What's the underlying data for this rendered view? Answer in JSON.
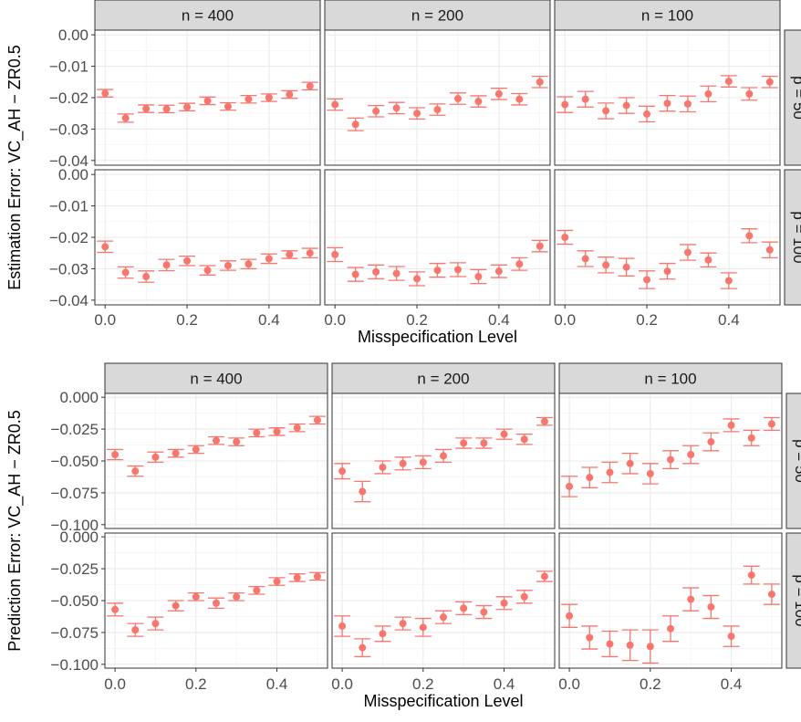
{
  "chart_data": [
    {
      "type": "scatter",
      "facet_columns": [
        "n = 400",
        "n = 200",
        "n = 100"
      ],
      "facet_rows": [
        "p = 50",
        "p = 100"
      ],
      "xlabel": "Misspecification Level",
      "ylabel": "Estimation Error: VC_AH − ZR0.5",
      "x_ticks": [
        "0.0",
        "0.2",
        "0.4"
      ],
      "x_tick_values": [
        0.0,
        0.2,
        0.4
      ],
      "y_ticks": [
        "0.00",
        "−0.01",
        "−0.02",
        "−0.03",
        "−0.04"
      ],
      "y_tick_values": [
        0.0,
        -0.01,
        -0.02,
        -0.03,
        -0.04
      ],
      "xlim": [
        -0.025,
        0.525
      ],
      "ylim": [
        -0.0415,
        0.0015
      ],
      "grid": true,
      "point_color": "#F8766D",
      "x": [
        0.0,
        0.05,
        0.1,
        0.15,
        0.2,
        0.25,
        0.3,
        0.35,
        0.4,
        0.45,
        0.5
      ],
      "panels": [
        {
          "col": 0,
          "row": 0,
          "y": [
            -0.0186,
            -0.0265,
            -0.0235,
            -0.0236,
            -0.023,
            -0.021,
            -0.0228,
            -0.0205,
            -0.02,
            -0.019,
            -0.0163
          ],
          "err": [
            0.0012,
            0.0013,
            0.0012,
            0.0012,
            0.0012,
            0.0012,
            0.0012,
            0.0012,
            0.0012,
            0.0012,
            0.0012
          ]
        },
        {
          "col": 1,
          "row": 0,
          "y": [
            -0.0222,
            -0.0285,
            -0.0243,
            -0.0233,
            -0.025,
            -0.0238,
            -0.0203,
            -0.0212,
            -0.0188,
            -0.0205,
            -0.015
          ],
          "err": [
            0.0018,
            0.002,
            0.0018,
            0.0018,
            0.0018,
            0.0018,
            0.0018,
            0.0018,
            0.0018,
            0.0018,
            0.0018
          ]
        },
        {
          "col": 2,
          "row": 0,
          "y": [
            -0.0222,
            -0.0205,
            -0.0242,
            -0.0225,
            -0.0252,
            -0.0218,
            -0.022,
            -0.0188,
            -0.0148,
            -0.0188,
            -0.015
          ],
          "err": [
            0.0025,
            0.0025,
            0.0025,
            0.0025,
            0.0025,
            0.0025,
            0.0025,
            0.0025,
            0.0018,
            0.002,
            0.0018
          ]
        },
        {
          "col": 0,
          "row": 1,
          "y": [
            -0.023,
            -0.0312,
            -0.0325,
            -0.0288,
            -0.0275,
            -0.0305,
            -0.029,
            -0.0285,
            -0.0268,
            -0.0255,
            -0.025
          ],
          "err": [
            0.0018,
            0.0018,
            0.0018,
            0.0018,
            0.0015,
            0.0015,
            0.0015,
            0.0015,
            0.0015,
            0.0012,
            0.0015
          ]
        },
        {
          "col": 1,
          "row": 1,
          "y": [
            -0.0255,
            -0.0318,
            -0.031,
            -0.0315,
            -0.0332,
            -0.0305,
            -0.0303,
            -0.0325,
            -0.0308,
            -0.0285,
            -0.0228
          ],
          "err": [
            0.0022,
            0.0022,
            0.0022,
            0.0022,
            0.0022,
            0.0022,
            0.0022,
            0.0022,
            0.002,
            0.002,
            0.0018
          ]
        },
        {
          "col": 2,
          "row": 1,
          "y": [
            -0.02,
            -0.0268,
            -0.0288,
            -0.0295,
            -0.0335,
            -0.0308,
            -0.0248,
            -0.0272,
            -0.0338,
            -0.0195,
            -0.024
          ],
          "err": [
            0.0022,
            0.0025,
            0.0025,
            0.0028,
            0.0028,
            0.0025,
            0.0025,
            0.0022,
            0.0025,
            0.0022,
            0.0025
          ]
        }
      ]
    },
    {
      "type": "scatter",
      "facet_columns": [
        "n = 400",
        "n = 200",
        "n = 100"
      ],
      "facet_rows": [
        "p = 50",
        "p = 100"
      ],
      "xlabel": "Misspecification Level",
      "ylabel": "Prediction Error: VC_AH − ZR0.5",
      "x_ticks": [
        "0.0",
        "0.2",
        "0.4"
      ],
      "x_tick_values": [
        0.0,
        0.2,
        0.4
      ],
      "y_ticks": [
        "0.000",
        "−0.025",
        "−0.050",
        "−0.075",
        "−0.100"
      ],
      "y_tick_values": [
        0.0,
        -0.025,
        -0.05,
        -0.075,
        -0.1
      ],
      "xlim": [
        -0.025,
        0.525
      ],
      "ylim": [
        -0.103,
        0.003
      ],
      "grid": true,
      "point_color": "#F8766D",
      "x": [
        0.0,
        0.05,
        0.1,
        0.15,
        0.2,
        0.25,
        0.3,
        0.35,
        0.4,
        0.45,
        0.5
      ],
      "panels": [
        {
          "col": 0,
          "row": 0,
          "y": [
            -0.045,
            -0.058,
            -0.047,
            -0.044,
            -0.041,
            -0.034,
            -0.035,
            -0.028,
            -0.027,
            -0.024,
            -0.018
          ],
          "err": [
            0.004,
            0.004,
            0.004,
            0.003,
            0.003,
            0.003,
            0.003,
            0.003,
            0.003,
            0.003,
            0.003
          ]
        },
        {
          "col": 1,
          "row": 0,
          "y": [
            -0.058,
            -0.074,
            -0.055,
            -0.052,
            -0.051,
            -0.046,
            -0.036,
            -0.036,
            -0.029,
            -0.033,
            -0.019
          ],
          "err": [
            0.006,
            0.008,
            0.005,
            0.005,
            0.005,
            0.005,
            0.004,
            0.004,
            0.004,
            0.004,
            0.003
          ]
        },
        {
          "col": 2,
          "row": 0,
          "y": [
            -0.07,
            -0.063,
            -0.059,
            -0.052,
            -0.06,
            -0.049,
            -0.045,
            -0.035,
            -0.022,
            -0.032,
            -0.021
          ],
          "err": [
            0.008,
            0.008,
            0.008,
            0.008,
            0.008,
            0.007,
            0.007,
            0.007,
            0.005,
            0.006,
            0.005
          ]
        },
        {
          "col": 0,
          "row": 1,
          "y": [
            -0.057,
            -0.073,
            -0.068,
            -0.054,
            -0.047,
            -0.052,
            -0.047,
            -0.042,
            -0.035,
            -0.032,
            -0.031
          ],
          "err": [
            0.005,
            0.005,
            0.005,
            0.004,
            0.003,
            0.004,
            0.003,
            0.003,
            0.003,
            0.003,
            0.003
          ]
        },
        {
          "col": 1,
          "row": 1,
          "y": [
            -0.07,
            -0.087,
            -0.076,
            -0.068,
            -0.071,
            -0.063,
            -0.056,
            -0.059,
            -0.052,
            -0.047,
            -0.031
          ],
          "err": [
            0.008,
            0.007,
            0.006,
            0.005,
            0.007,
            0.005,
            0.005,
            0.005,
            0.005,
            0.005,
            0.004
          ]
        },
        {
          "col": 2,
          "row": 1,
          "y": [
            -0.062,
            -0.079,
            -0.084,
            -0.085,
            -0.086,
            -0.072,
            -0.049,
            -0.055,
            -0.078,
            -0.03,
            -0.045
          ],
          "err": [
            0.009,
            0.009,
            0.01,
            0.012,
            0.013,
            0.01,
            0.009,
            0.009,
            0.008,
            0.007,
            0.008
          ]
        }
      ]
    }
  ]
}
